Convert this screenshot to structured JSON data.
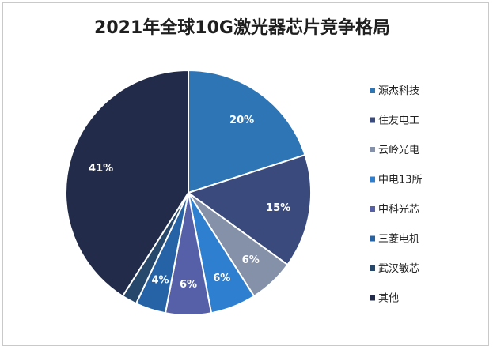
{
  "chart_data": {
    "type": "pie",
    "title": "2021年全球10G激光器芯片竞争格局",
    "categories": [
      "源杰科技",
      "住友电工",
      "云岭光电",
      "中电13所",
      "中科光芯",
      "三菱电机",
      "武汉敏芯",
      "其他"
    ],
    "values": [
      20,
      15,
      6,
      6,
      6,
      4,
      2,
      41
    ],
    "data_labels": [
      "20%",
      "15%",
      "6%",
      "6%",
      "6%",
      "4%",
      "",
      "41%"
    ],
    "colors": [
      "#2e75b6",
      "#3a4a7c",
      "#8591a8",
      "#2f7fd1",
      "#5560a8",
      "#2563a6",
      "#27476b",
      "#222c4a"
    ],
    "legend_position": "right"
  }
}
